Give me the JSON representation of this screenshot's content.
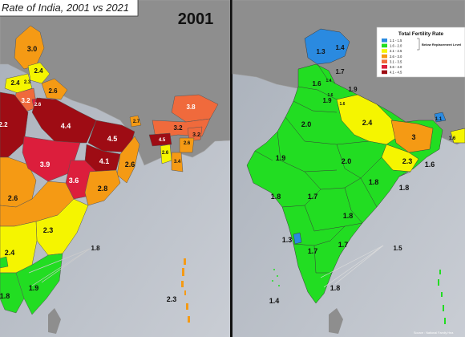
{
  "title": "Rate of India, 2001 vs 2021",
  "left_map": {
    "year": "2001",
    "labels": [
      "3.0",
      "2.4",
      "2.4",
      "2.3",
      "2.6",
      "3.2",
      "2.6",
      "2.2",
      "4.4",
      "4.5",
      "3.8",
      "2.7",
      "3.2",
      "3.2",
      "2.6",
      "4.5",
      "2.6",
      "3.4",
      "3.9",
      "3.6",
      "4.1",
      "2.6",
      "2.8",
      "2.6",
      "2.3",
      "2.4",
      "1.8",
      "1.9",
      "1.8",
      "2.3"
    ]
  },
  "right_map": {
    "year": "",
    "labels": [
      "1.3",
      "1.4",
      "1.7",
      "1.6",
      "1.4",
      "1.6",
      "1.9",
      "1.9",
      "1.6",
      "2.0",
      "2.4",
      "1.1",
      "3",
      "1.9",
      "2.0",
      "2.3",
      "1.6",
      "1.8",
      "1.8",
      "1.7",
      "1.8",
      "1.3",
      "1.7",
      "1.7",
      "1.5",
      "1.8",
      "1.4",
      "1.8",
      "1.6"
    ]
  },
  "legend": {
    "title": "Total Fertility Rate",
    "items": [
      {
        "label": "1.1 - 1.5",
        "color": "#2a8ae0"
      },
      {
        "label": "1.6 - 2.0",
        "color": "#22dd22"
      },
      {
        "label": "2.1 - 2.5",
        "color": "#f5f500"
      },
      {
        "label": "2.6 - 3.0",
        "color": "#f59a14"
      },
      {
        "label": "3.1 - 3.5",
        "color": "#f06a3c"
      },
      {
        "label": "3.6 - 4.0",
        "color": "#dc1e3c"
      },
      {
        "label": "4.1 - 4.5",
        "color": "#9e0c14"
      }
    ],
    "bracket_text": "Below Replacement Level"
  },
  "source": "Source : National Family Hea",
  "colors": {
    "land": "#8e8e8e",
    "sea": "#b9bfc8",
    "sea_edge": "#d2d6dc"
  }
}
